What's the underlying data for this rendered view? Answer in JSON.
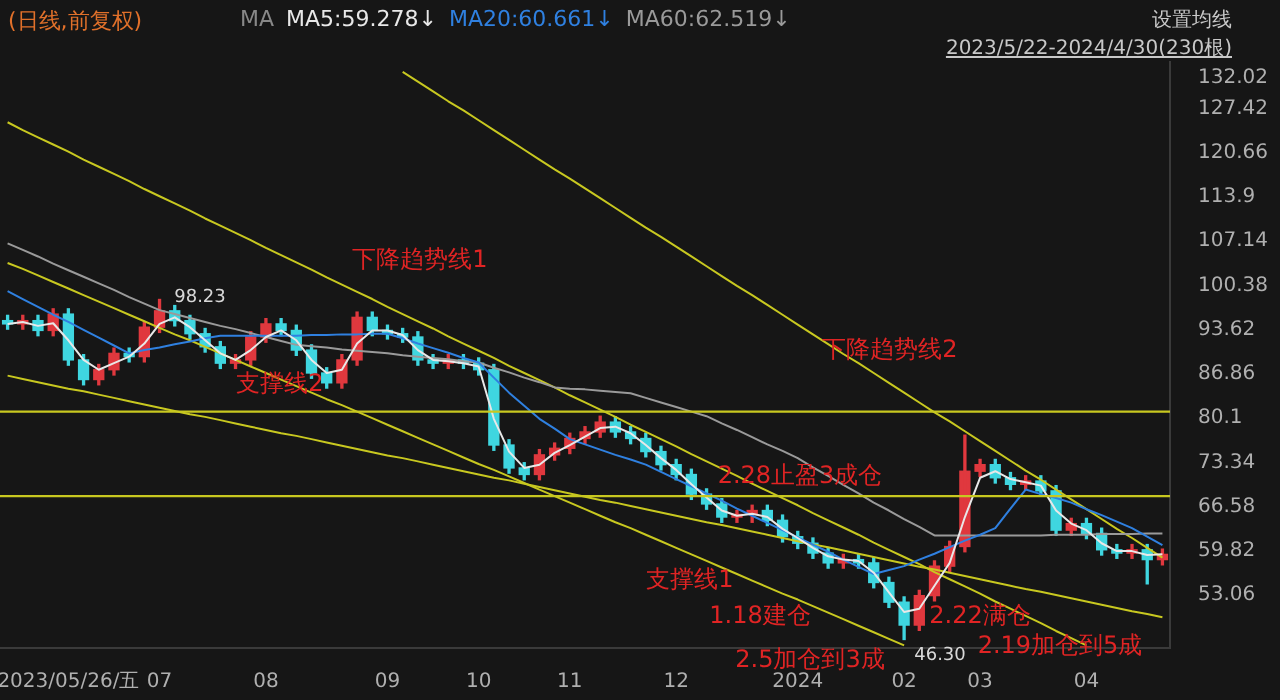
{
  "chart_data": {
    "type": "candlestick",
    "title": "(日线,前复权)",
    "subtitle": "2023/5/22-2024/4/30(230根)",
    "legend_title": "MA",
    "categories": [
      null,
      null,
      null,
      null,
      "2023/05/26/五",
      null,
      null,
      null,
      null,
      null,
      "07",
      null,
      null,
      null,
      null,
      null,
      null,
      "08",
      null,
      null,
      null,
      null,
      null,
      null,
      null,
      "09",
      null,
      null,
      null,
      null,
      null,
      "10",
      null,
      null,
      null,
      null,
      null,
      "11",
      null,
      null,
      null,
      null,
      null,
      null,
      "12",
      null,
      null,
      null,
      null,
      null,
      null,
      null,
      "2024",
      null,
      null,
      null,
      null,
      null,
      null,
      "02",
      null,
      null,
      null,
      null,
      "03",
      null,
      null,
      null,
      null,
      null,
      null,
      "04",
      null,
      null,
      null,
      null,
      null
    ],
    "ohlc": [
      [
        95.0,
        95.8,
        93.7,
        94.5
      ],
      [
        94.5,
        95.8,
        93.7,
        95.0
      ],
      [
        95.0,
        95.8,
        92.7,
        93.5
      ],
      [
        93.5,
        96.8,
        92.7,
        96.0
      ],
      [
        96.0,
        96.8,
        88.2,
        89.0
      ],
      [
        89.0,
        89.8,
        85.2,
        86.0
      ],
      [
        86.0,
        88.3,
        85.2,
        87.5
      ],
      [
        87.5,
        90.8,
        86.7,
        90.0
      ],
      [
        90.0,
        90.8,
        88.7,
        89.5
      ],
      [
        89.5,
        94.8,
        88.7,
        94.0
      ],
      [
        94.0,
        98.23,
        93.2,
        96.5
      ],
      [
        96.5,
        97.3,
        94.2,
        95.0
      ],
      [
        95.0,
        95.8,
        92.2,
        93.0
      ],
      [
        93.0,
        93.8,
        90.2,
        91.0
      ],
      [
        91.0,
        91.8,
        87.7,
        88.5
      ],
      [
        88.5,
        89.8,
        87.7,
        89.0
      ],
      [
        89.0,
        93.3,
        88.2,
        92.5
      ],
      [
        92.5,
        95.3,
        91.7,
        94.5
      ],
      [
        94.5,
        95.3,
        92.7,
        93.5
      ],
      [
        93.5,
        94.3,
        89.7,
        90.5
      ],
      [
        90.5,
        91.3,
        86.2,
        87.0
      ],
      [
        87.0,
        87.8,
        84.7,
        85.5
      ],
      [
        85.5,
        89.8,
        84.7,
        89.0
      ],
      [
        89.0,
        96.3,
        88.2,
        95.5
      ],
      [
        95.5,
        96.3,
        92.7,
        93.5
      ],
      [
        93.5,
        94.3,
        92.2,
        93.0
      ],
      [
        93.0,
        93.8,
        91.7,
        92.5
      ],
      [
        92.5,
        93.3,
        88.2,
        89.0
      ],
      [
        89.0,
        89.8,
        87.7,
        88.5
      ],
      [
        88.5,
        89.8,
        87.7,
        89.0
      ],
      [
        89.0,
        89.8,
        87.7,
        88.5
      ],
      [
        88.5,
        89.3,
        86.7,
        87.5
      ],
      [
        87.5,
        88.3,
        75.2,
        76.0
      ],
      [
        76.0,
        76.8,
        71.7,
        72.5
      ],
      [
        72.5,
        73.3,
        70.7,
        71.5
      ],
      [
        71.5,
        75.3,
        70.7,
        74.5
      ],
      [
        74.5,
        76.3,
        73.7,
        75.5
      ],
      [
        75.5,
        77.8,
        74.7,
        77.0
      ],
      [
        77.0,
        78.8,
        76.2,
        78.0
      ],
      [
        78.0,
        80.4,
        77.2,
        79.5
      ],
      [
        79.5,
        80.3,
        77.2,
        78.0
      ],
      [
        78.0,
        78.8,
        76.2,
        77.0
      ],
      [
        77.0,
        77.8,
        74.2,
        75.0
      ],
      [
        75.0,
        75.8,
        72.2,
        73.0
      ],
      [
        73.0,
        73.8,
        70.7,
        71.5
      ],
      [
        71.5,
        72.3,
        67.7,
        68.5
      ],
      [
        68.5,
        69.3,
        66.2,
        67.0
      ],
      [
        67.0,
        67.8,
        64.2,
        65.0
      ],
      [
        65.0,
        66.0,
        64.2,
        65.4
      ],
      [
        65.4,
        66.8,
        64.2,
        66.0
      ],
      [
        66.0,
        66.8,
        63.7,
        64.5
      ],
      [
        64.5,
        65.3,
        61.2,
        62.0
      ],
      [
        62.0,
        62.8,
        60.2,
        61.0
      ],
      [
        61.0,
        61.8,
        58.7,
        59.5
      ],
      [
        59.5,
        60.3,
        57.2,
        58.0
      ],
      [
        58.0,
        59.3,
        57.2,
        58.5
      ],
      [
        58.5,
        59.3,
        57.2,
        58.0
      ],
      [
        58.0,
        58.8,
        54.2,
        55.0
      ],
      [
        55.0,
        55.8,
        51.2,
        52.0
      ],
      [
        52.0,
        52.8,
        46.3,
        48.5
      ],
      [
        48.5,
        53.8,
        47.7,
        53.0
      ],
      [
        53.0,
        58.3,
        52.2,
        57.5
      ],
      [
        57.5,
        61.3,
        56.7,
        60.5
      ],
      [
        60.5,
        77.5,
        59.7,
        72.0
      ],
      [
        72.0,
        73.8,
        71.2,
        73.0
      ],
      [
        73.0,
        73.8,
        70.2,
        71.0
      ],
      [
        71.0,
        71.8,
        69.2,
        70.0
      ],
      [
        70.0,
        71.3,
        69.2,
        70.5
      ],
      [
        70.5,
        71.3,
        68.2,
        69.0
      ],
      [
        69.0,
        69.8,
        62.2,
        63.0
      ],
      [
        63.0,
        64.8,
        62.2,
        64.0
      ],
      [
        64.0,
        64.8,
        61.7,
        62.5
      ],
      [
        62.5,
        63.3,
        59.2,
        60.0
      ],
      [
        60.0,
        60.8,
        58.7,
        59.5
      ],
      [
        59.5,
        60.8,
        58.7,
        60.0
      ],
      [
        60.0,
        60.8,
        54.8,
        58.5
      ],
      [
        58.5,
        60.1,
        57.7,
        59.3
      ]
    ],
    "colors": [
      "#3fd6e0",
      "#e0383e",
      "#3fd6e0",
      "#e0383e",
      "#3fd6e0",
      "#3fd6e0",
      "#e0383e",
      "#e0383e",
      "#3fd6e0",
      "#e0383e",
      "#e0383e",
      "#3fd6e0",
      "#3fd6e0",
      "#3fd6e0",
      "#3fd6e0",
      "#e0383e",
      "#e0383e",
      "#e0383e",
      "#3fd6e0",
      "#3fd6e0",
      "#3fd6e0",
      "#3fd6e0",
      "#e0383e",
      "#e0383e",
      "#3fd6e0",
      "#3fd6e0",
      "#3fd6e0",
      "#3fd6e0",
      "#3fd6e0",
      "#e0383e",
      "#3fd6e0",
      "#3fd6e0",
      "#3fd6e0",
      "#3fd6e0",
      "#3fd6e0",
      "#e0383e",
      "#e0383e",
      "#e0383e",
      "#e0383e",
      "#e0383e",
      "#3fd6e0",
      "#3fd6e0",
      "#3fd6e0",
      "#3fd6e0",
      "#3fd6e0",
      "#3fd6e0",
      "#3fd6e0",
      "#3fd6e0",
      "#e0383e",
      "#e0383e",
      "#3fd6e0",
      "#3fd6e0",
      "#3fd6e0",
      "#3fd6e0",
      "#3fd6e0",
      "#e0383e",
      "#3fd6e0",
      "#3fd6e0",
      "#3fd6e0",
      "#3fd6e0",
      "#e0383e",
      "#e0383e",
      "#e0383e",
      "#e0383e",
      "#e0383e",
      "#3fd6e0",
      "#3fd6e0",
      "#e0383e",
      "#3fd6e0",
      "#3fd6e0",
      "#e0383e",
      "#3fd6e0",
      "#3fd6e0",
      "#3fd6e0",
      "#e0383e",
      "#3fd6e0",
      "#e0383e"
    ],
    "series": [
      {
        "name": "MA5:59.278↓",
        "type": "line",
        "color": "#e8e8e8",
        "values": [
          94.5,
          94.8,
          94.2,
          94.6,
          92.0,
          89.0,
          87.5,
          88.5,
          89.5,
          91.5,
          94.5,
          95.5,
          94.0,
          92.0,
          90.0,
          89.0,
          90.5,
          92.5,
          93.5,
          92.0,
          89.0,
          87.0,
          87.5,
          91.5,
          93.5,
          93.5,
          92.8,
          90.5,
          89.0,
          88.8,
          88.5,
          88.0,
          80.0,
          75.0,
          72.5,
          73.0,
          74.8,
          76.0,
          77.3,
          78.6,
          78.8,
          77.8,
          76.0,
          74.0,
          72.2,
          70.0,
          68.0,
          66.0,
          65.2,
          65.5,
          65.0,
          63.2,
          61.8,
          60.3,
          59.0,
          58.5,
          58.3,
          56.5,
          53.5,
          50.5,
          51.0,
          54.5,
          58.0,
          65.0,
          71.0,
          72.0,
          70.8,
          70.3,
          69.8,
          66.0,
          64.0,
          63.0,
          61.0,
          59.8,
          59.8,
          59.2,
          59.3
        ]
      },
      {
        "name": "MA20:60.661↓",
        "type": "line",
        "color": "#2f80e0",
        "values": [
          99.5,
          98.3,
          97.1,
          95.9,
          94.8,
          93.6,
          92.4,
          91.2,
          90.0,
          90.5,
          90.9,
          91.4,
          91.8,
          92.3,
          92.7,
          92.7,
          92.7,
          92.7,
          92.7,
          92.7,
          92.8,
          92.8,
          92.9,
          92.9,
          93.0,
          93.0,
          92.3,
          91.5,
          90.8,
          90.1,
          89.3,
          88.6,
          86.3,
          84.0,
          82.0,
          80.0,
          78.5,
          76.9,
          76.1,
          75.3,
          74.5,
          73.8,
          73.0,
          71.9,
          70.8,
          69.7,
          68.6,
          67.5,
          66.3,
          65.2,
          64.1,
          63.0,
          61.9,
          60.8,
          59.7,
          58.5,
          57.4,
          56.3,
          56.9,
          57.5,
          58.5,
          59.4,
          60.4,
          61.4,
          62.3,
          63.3,
          66.3,
          69.2,
          68.5,
          67.9,
          67.2,
          66.2,
          65.3,
          64.3,
          63.3,
          62.0,
          60.7
        ]
      },
      {
        "name": "MA60:62.519↓",
        "type": "line",
        "color": "#9a9a9a",
        "values": [
          106.8,
          105.8,
          104.8,
          103.7,
          102.7,
          101.7,
          100.7,
          99.7,
          98.6,
          97.6,
          96.6,
          96.0,
          95.4,
          94.8,
          94.2,
          93.7,
          93.1,
          92.5,
          91.9,
          91.3,
          91.1,
          90.9,
          90.6,
          90.4,
          90.2,
          90.0,
          89.7,
          89.5,
          89.3,
          89.1,
          88.8,
          88.6,
          87.8,
          87.1,
          86.3,
          85.6,
          84.8,
          84.6,
          84.5,
          84.3,
          84.1,
          83.9,
          83.2,
          82.5,
          81.8,
          81.1,
          80.4,
          79.3,
          78.3,
          77.2,
          76.1,
          75.1,
          74.0,
          72.6,
          71.3,
          69.9,
          68.6,
          67.2,
          66.0,
          64.7,
          63.5,
          62.2,
          62.2,
          62.2,
          62.2,
          62.2,
          62.2,
          62.2,
          62.2,
          62.3,
          62.3,
          62.3,
          62.4,
          62.4,
          62.4,
          62.5,
          62.5
        ]
      },
      {
        "type": "line",
        "color": "#c8c820",
        "values": [
          null,
          null,
          null,
          null,
          null,
          null,
          null,
          null,
          null,
          null,
          null,
          null,
          null,
          null,
          null,
          null,
          null,
          null,
          null,
          null,
          null,
          null,
          null,
          null,
          null,
          null,
          133.0,
          131.5,
          130.0,
          128.5,
          127.1,
          125.6,
          124.1,
          122.6,
          121.1,
          119.6,
          118.1,
          116.7,
          115.2,
          113.7,
          112.2,
          110.7,
          109.2,
          107.8,
          106.3,
          104.8,
          103.3,
          101.8,
          100.3,
          98.9,
          97.4,
          95.9,
          94.4,
          92.9,
          91.4,
          89.9,
          88.5,
          87.0,
          85.5,
          84.0,
          82.5,
          81.0,
          79.6,
          78.1,
          76.6,
          75.1,
          73.6,
          72.1,
          70.7,
          69.2,
          67.7,
          66.2,
          64.7,
          63.2,
          61.8,
          60.3,
          58.8
        ]
      },
      {
        "type": "line",
        "color": "#c8c820",
        "values": [
          125.3,
          124.1,
          123.0,
          121.9,
          120.8,
          119.6,
          118.5,
          117.4,
          116.3,
          115.1,
          114.0,
          112.9,
          111.8,
          110.6,
          109.5,
          108.4,
          107.3,
          106.1,
          105.0,
          103.9,
          102.8,
          101.6,
          100.5,
          99.4,
          98.3,
          97.1,
          96.0,
          94.9,
          93.8,
          92.6,
          91.5,
          90.4,
          89.3,
          88.1,
          87.0,
          85.9,
          84.8,
          83.6,
          82.5,
          81.4,
          80.3,
          79.1,
          78.0,
          76.9,
          75.8,
          74.6,
          73.5,
          72.4,
          71.3,
          70.1,
          69.0,
          67.9,
          66.8,
          65.6,
          64.5,
          63.4,
          62.3,
          61.1,
          60.0,
          58.9,
          57.8,
          56.6,
          55.5,
          54.4,
          53.3,
          52.1,
          51.0,
          49.9,
          48.8,
          47.6,
          46.5,
          45.4,
          null,
          null,
          null,
          null,
          null
        ]
      },
      {
        "type": "line",
        "color": "#c8c820",
        "values": [
          103.8,
          102.9,
          101.9,
          100.9,
          99.9,
          98.9,
          97.9,
          96.9,
          95.9,
          94.9,
          93.9,
          92.9,
          92.0,
          91.0,
          90.0,
          89.0,
          88.0,
          87.0,
          86.0,
          85.0,
          84.0,
          83.0,
          82.1,
          81.1,
          80.1,
          79.1,
          78.1,
          77.1,
          76.1,
          75.1,
          74.1,
          73.1,
          72.2,
          71.2,
          70.2,
          69.2,
          68.2,
          67.2,
          66.2,
          65.2,
          64.2,
          63.3,
          62.3,
          61.3,
          60.3,
          59.3,
          58.3,
          57.3,
          56.3,
          55.3,
          54.3,
          53.3,
          52.4,
          51.4,
          50.4,
          49.4,
          48.4,
          47.4,
          46.4,
          45.4,
          null,
          null,
          null,
          null,
          null,
          null,
          null,
          null,
          null,
          null,
          null,
          null,
          null,
          null,
          null,
          null,
          null
        ]
      },
      {
        "type": "line",
        "color": "#c8c820",
        "values": [
          86.6,
          86.1,
          85.6,
          85.1,
          84.6,
          84.2,
          83.7,
          83.2,
          82.7,
          82.2,
          81.7,
          81.2,
          80.7,
          80.3,
          79.8,
          79.3,
          78.8,
          78.3,
          77.8,
          77.4,
          76.9,
          76.4,
          75.9,
          75.4,
          74.9,
          74.4,
          74.0,
          73.5,
          73.0,
          72.5,
          72.0,
          71.5,
          71.0,
          70.6,
          70.1,
          69.6,
          69.1,
          68.6,
          68.1,
          67.6,
          67.2,
          66.7,
          66.2,
          65.7,
          65.2,
          64.7,
          64.2,
          63.8,
          63.3,
          62.8,
          62.3,
          61.8,
          61.3,
          60.8,
          60.4,
          59.9,
          59.4,
          58.9,
          58.4,
          57.9,
          57.4,
          57.0,
          56.5,
          56.0,
          55.5,
          55.0,
          54.5,
          54.0,
          53.6,
          53.1,
          52.6,
          52.1,
          51.6,
          51.1,
          50.6,
          50.2,
          49.7
        ]
      }
    ],
    "ref_lines": [
      {
        "axis": "y",
        "value": 81.1,
        "color": "#c8c820"
      },
      {
        "axis": "y",
        "value": 68.2,
        "color": "#c8c820"
      }
    ],
    "annotations": [
      "设置均线",
      "下降趋势线1",
      "下降趋势线2",
      "支撑线2",
      "支撑线1",
      "2.28止盈3成仓",
      "1.18建仓",
      "2.22满仓",
      "2.5加仓到3成",
      "2.19加仓到5成",
      "98.23",
      "46.30"
    ],
    "ylim": [
      45,
      134.5
    ],
    "yticks": [
      53.06,
      59.82,
      66.58,
      73.34,
      80.1,
      86.86,
      93.62,
      100.38,
      107.14,
      113.9,
      120.66,
      127.42,
      132.02
    ],
    "grid": false,
    "legend": "top left",
    "marker": "none"
  }
}
